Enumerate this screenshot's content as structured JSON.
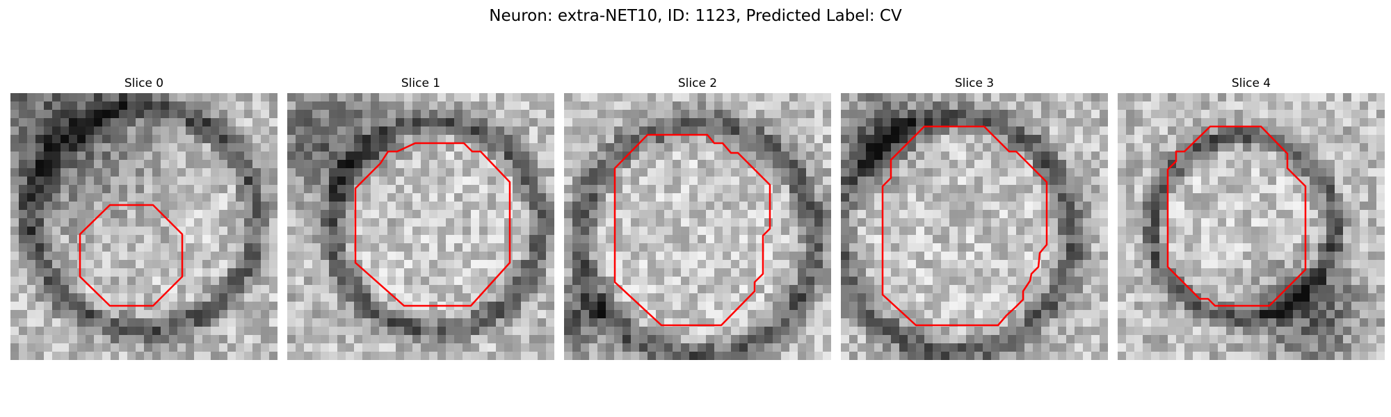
{
  "figure": {
    "suptitle": "Neuron: extra-NET10, ID: 1123, Predicted Label: CV",
    "contour_color": "#ff0000",
    "colormap": "grayscale",
    "slices": [
      {
        "title": "Slice 0",
        "icon": "em-slice-image",
        "outline": "red-contour"
      },
      {
        "title": "Slice 1",
        "icon": "em-slice-image",
        "outline": "red-contour"
      },
      {
        "title": "Slice 2",
        "icon": "em-slice-image",
        "outline": "red-contour"
      },
      {
        "title": "Slice 3",
        "icon": "em-slice-image",
        "outline": "red-contour"
      },
      {
        "title": "Slice 4",
        "icon": "em-slice-image",
        "outline": "red-contour"
      }
    ]
  }
}
